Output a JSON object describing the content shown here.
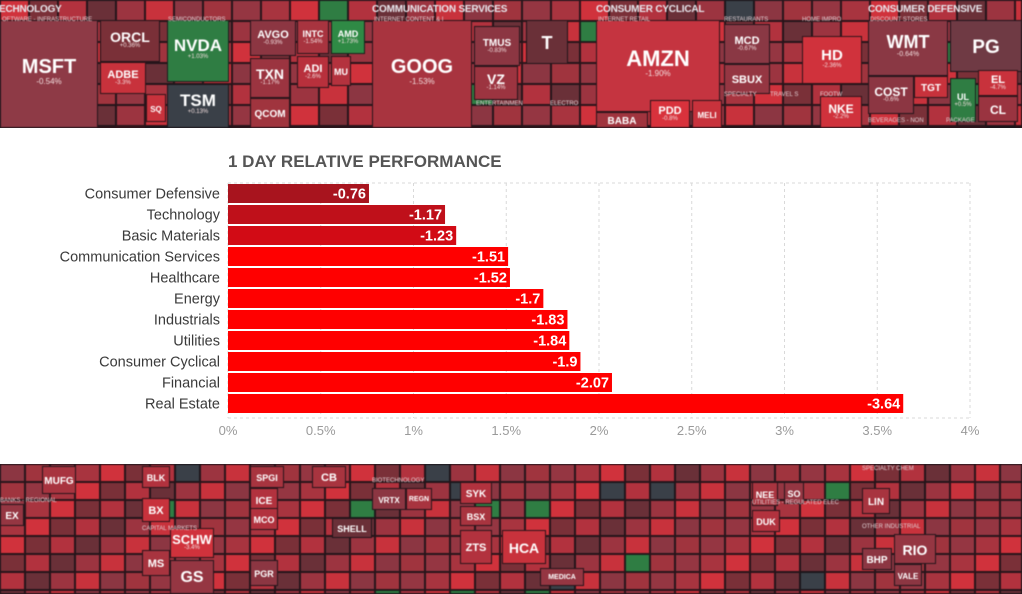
{
  "top_heatmap": {
    "sectors": [
      "ECHNOLOGY",
      "COMMUNICATION SERVICES",
      "CONSUMER CYCLICAL",
      "CONSUMER DEFENSIVE"
    ],
    "subsectors": [
      "OFTWARE - INFRASTRUCTURE",
      "SEMICONDUCTORS",
      "INTERNET CONTENT & I",
      "INTERNET RETAIL",
      "RESTAURANTS",
      "HOME IMPRO",
      "DISCOUNT STORES",
      "ENTERTAINMEN",
      "ELECTRO",
      "SPECIALTY",
      "TRAVEL S",
      "FOOTW",
      "BEVERAGES - NON",
      "PACKAGE"
    ],
    "tiles": [
      {
        "ticker": "MSFT",
        "change": "-0.54%",
        "color": "#8e3a46"
      },
      {
        "ticker": "ORCL",
        "change": "+0.36%",
        "color": "#7a3038"
      },
      {
        "ticker": "ADBE",
        "change": "-3.3%",
        "color": "#c8323c"
      },
      {
        "ticker": "NVDA",
        "change": "+1.03%",
        "color": "#2f7d43"
      },
      {
        "ticker": "TSM",
        "change": "+0.13%",
        "color": "#3a4048"
      },
      {
        "ticker": "AVGO",
        "change": "-0.93%",
        "color": "#8c3642"
      },
      {
        "ticker": "TXN",
        "change": "-1.17%",
        "color": "#9b3440"
      },
      {
        "ticker": "QCOM",
        "change": "",
        "color": "#a0343e"
      },
      {
        "ticker": "INTC",
        "change": "-1.54%",
        "color": "#a8343f"
      },
      {
        "ticker": "AMD",
        "change": "+1.73%",
        "color": "#2f8a45"
      },
      {
        "ticker": "ADI",
        "change": "-2.6%",
        "color": "#b8303c"
      },
      {
        "ticker": "MU",
        "change": "",
        "color": "#b4323e"
      },
      {
        "ticker": "GOOG",
        "change": "-1.53%",
        "color": "#a8343f"
      },
      {
        "ticker": "TMUS",
        "change": "-0.83%",
        "color": "#8c3642"
      },
      {
        "ticker": "T",
        "change": "",
        "color": "#6a3038"
      },
      {
        "ticker": "VZ",
        "change": "-1.14%",
        "color": "#9c3440"
      },
      {
        "ticker": "AMZN",
        "change": "-1.90%",
        "color": "#c53440"
      },
      {
        "ticker": "MCD",
        "change": "-0.67%",
        "color": "#8a3844"
      },
      {
        "ticker": "SBUX",
        "change": "",
        "color": "#953642"
      },
      {
        "ticker": "HD",
        "change": "-2.36%",
        "color": "#d0323c"
      },
      {
        "ticker": "PDD",
        "change": "-0.8%",
        "color": "#d8323c"
      },
      {
        "ticker": "MELI",
        "change": "",
        "color": "#c8323c"
      },
      {
        "ticker": "BABA",
        "change": "",
        "color": "#a0343e"
      },
      {
        "ticker": "NKE",
        "change": "-2.2%",
        "color": "#d0323c"
      },
      {
        "ticker": "WMT",
        "change": "-0.64%",
        "color": "#8a3844"
      },
      {
        "ticker": "COST",
        "change": "-0.6%",
        "color": "#8c3642"
      },
      {
        "ticker": "TGT",
        "change": "",
        "color": "#c8323c"
      },
      {
        "ticker": "PG",
        "change": "",
        "color": "#6f3a44"
      },
      {
        "ticker": "EL",
        "change": "-4.7%",
        "color": "#c8323c"
      },
      {
        "ticker": "CL",
        "change": "",
        "color": "#9a3440"
      },
      {
        "ticker": "UL",
        "change": "+0.5%",
        "color": "#2f7d43"
      },
      {
        "ticker": "SQ",
        "change": "",
        "color": "#c8323c"
      }
    ]
  },
  "bottom_heatmap": {
    "subsectors": [
      "BANKS - REGIONAL",
      "CAPITAL MARKETS",
      "BIOTECHNOLOGY",
      "UTILITIES - REGULATED ELEC",
      "SPECIALTY CHEM",
      "OTHER INDUSTRIAL"
    ],
    "tiles": [
      {
        "ticker": "MUFG",
        "change": "",
        "color": "#a8343f"
      },
      {
        "ticker": "BLK",
        "change": "",
        "color": "#b2323e"
      },
      {
        "ticker": "BX",
        "change": "",
        "color": "#c8323c"
      },
      {
        "ticker": "SCHW",
        "change": "-3.4%",
        "color": "#d0323c"
      },
      {
        "ticker": "MS",
        "change": "",
        "color": "#a8343f"
      },
      {
        "ticker": "GS",
        "change": "",
        "color": "#953642"
      },
      {
        "ticker": "SPGI",
        "change": "",
        "color": "#a8343f"
      },
      {
        "ticker": "ICE",
        "change": "",
        "color": "#b2323e"
      },
      {
        "ticker": "MCO",
        "change": "",
        "color": "#b2323e"
      },
      {
        "ticker": "CB",
        "change": "",
        "color": "#a8343f"
      },
      {
        "ticker": "PGR",
        "change": "",
        "color": "#8c3642"
      },
      {
        "ticker": "SHELL",
        "change": "",
        "color": "#6a3038"
      },
      {
        "ticker": "VRTX",
        "change": "",
        "color": "#8c3642"
      },
      {
        "ticker": "REGN",
        "change": "",
        "color": "#a8343f"
      },
      {
        "ticker": "SYK",
        "change": "",
        "color": "#b2323e"
      },
      {
        "ticker": "BSX",
        "change": "",
        "color": "#a8343f"
      },
      {
        "ticker": "ZTS",
        "change": "",
        "color": "#b2323e"
      },
      {
        "ticker": "HCA",
        "change": "",
        "color": "#c8323c"
      },
      {
        "ticker": "MEDICA",
        "change": "",
        "color": "#953642"
      },
      {
        "ticker": "NEE",
        "change": "",
        "color": "#a8343f"
      },
      {
        "ticker": "SO",
        "change": "",
        "color": "#953642"
      },
      {
        "ticker": "DUK",
        "change": "",
        "color": "#b2323e"
      },
      {
        "ticker": "LIN",
        "change": "",
        "color": "#a8343f"
      },
      {
        "ticker": "RIO",
        "change": "",
        "color": "#953642"
      },
      {
        "ticker": "BHP",
        "change": "",
        "color": "#8c3642"
      },
      {
        "ticker": "VALE",
        "change": "",
        "color": "#8c3642"
      },
      {
        "ticker": "EX",
        "change": "",
        "color": "#953642"
      }
    ]
  },
  "chart_data": {
    "type": "bar",
    "orientation": "horizontal",
    "title": "1 DAY RELATIVE PERFORMANCE",
    "categories": [
      "Consumer Defensive",
      "Technology",
      "Basic Materials",
      "Communication Services",
      "Healthcare",
      "Energy",
      "Industrials",
      "Utilities",
      "Consumer Cyclical",
      "Financial",
      "Real Estate"
    ],
    "values": [
      -0.76,
      -1.17,
      -1.23,
      -1.51,
      -1.52,
      -1.7,
      -1.83,
      -1.84,
      -1.9,
      -2.07,
      -3.64
    ],
    "value_labels": [
      "-0.76",
      "-1.17",
      "-1.23",
      "-1.51",
      "-1.52",
      "-1.7",
      "-1.83",
      "-1.84",
      "-1.9",
      "-2.07",
      "-3.64"
    ],
    "xlabel": "",
    "ylabel": "",
    "xlim": [
      0,
      4
    ],
    "xticks": [
      0,
      0.5,
      1,
      1.5,
      2,
      2.5,
      3,
      3.5,
      4
    ],
    "xtick_labels": [
      "0%",
      "0.5%",
      "1%",
      "1.5%",
      "2%",
      "2.5%",
      "3%",
      "3.5%",
      "4%"
    ],
    "grid": true,
    "bar_colors": [
      "#a8141e",
      "#bf101a",
      "#d20b15",
      "#ff0000",
      "#ff0000",
      "#ff0000",
      "#ff0000",
      "#ff0000",
      "#ff0000",
      "#ff0000",
      "#ff0000"
    ],
    "colors": {
      "title": "#555555",
      "category_label": "#3a3a3a",
      "tick_label": "#9a9a9a",
      "grid": "#d9d9d9",
      "value_label": "#ffffff"
    }
  }
}
